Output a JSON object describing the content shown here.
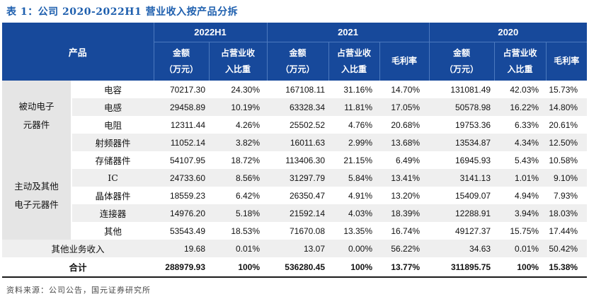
{
  "title": "表 1：公司 2020-2022H1 营业收入按产品分拆",
  "source_note": "资料来源：公司公告，国元证券研究所",
  "colors": {
    "header_bg": "#17499B",
    "title_blue": "#1E5FAE",
    "stripe": "#EFEFEF",
    "group_col": "#E5E5E5",
    "divider": "#4C79BE",
    "total_border": "#1A1A1A"
  },
  "table": {
    "product_label": "产品",
    "periods": [
      {
        "label": "2022H1"
      },
      {
        "label": "2021"
      },
      {
        "label": "2020"
      }
    ],
    "subheaders": {
      "amount_line1": "金额",
      "amount_line2": "（万元）",
      "share_line1": "占营业收",
      "share_line2": "入比重",
      "margin": "毛利率"
    },
    "groups": [
      {
        "label": "被动电子元器件",
        "label_lines": [
          "被动电子",
          "元器件"
        ],
        "products": [
          {
            "name": "电容",
            "values": [
              "70217.30",
              "24.30%",
              "167108.11",
              "31.16%",
              "14.70%",
              "131081.49",
              "42.03%",
              "15.73%"
            ]
          },
          {
            "name": "电感",
            "values": [
              "29458.89",
              "10.19%",
              "63328.34",
              "11.81%",
              "17.05%",
              "50578.98",
              "16.22%",
              "14.80%"
            ]
          },
          {
            "name": "电阻",
            "values": [
              "12311.44",
              "4.26%",
              "25502.52",
              "4.76%",
              "20.68%",
              "19753.36",
              "6.33%",
              "20.61%"
            ]
          },
          {
            "name": "射频器件",
            "values": [
              "11052.14",
              "3.82%",
              "16011.63",
              "2.99%",
              "13.68%",
              "13534.87",
              "4.34%",
              "12.50%"
            ]
          }
        ]
      },
      {
        "label": "主动及其他电子元器件",
        "label_lines": [
          "主动及其他",
          "电子元器件"
        ],
        "products": [
          {
            "name": "存储器件",
            "values": [
              "54107.95",
              "18.72%",
              "113406.30",
              "21.15%",
              "6.49%",
              "16945.93",
              "5.43%",
              "10.58%"
            ]
          },
          {
            "name": "IC",
            "values": [
              "24733.60",
              "8.56%",
              "31297.79",
              "5.84%",
              "13.41%",
              "3141.13",
              "1.01%",
              "9.10%"
            ]
          },
          {
            "name": "晶体器件",
            "values": [
              "18559.23",
              "6.42%",
              "26350.47",
              "4.91%",
              "13.20%",
              "15409.07",
              "4.94%",
              "7.93%"
            ]
          },
          {
            "name": "连接器",
            "values": [
              "14976.20",
              "5.18%",
              "21592.14",
              "4.03%",
              "18.39%",
              "12288.91",
              "3.94%",
              "18.03%"
            ]
          },
          {
            "name": "其他",
            "values": [
              "53543.49",
              "18.53%",
              "71670.08",
              "13.35%",
              "16.74%",
              "49127.37",
              "15.75%",
              "17.44%"
            ]
          }
        ]
      }
    ],
    "summary_rows": [
      {
        "label": "其他业务收入",
        "bold": false,
        "values": [
          "19.68",
          "0.01%",
          "13.07",
          "0.00%",
          "56.22%",
          "34.63",
          "0.01%",
          "50.42%"
        ]
      },
      {
        "label": "合计",
        "bold": true,
        "values": [
          "288979.93",
          "100%",
          "536280.45",
          "100%",
          "13.77%",
          "311895.75",
          "100%",
          "15.38%"
        ]
      }
    ]
  }
}
